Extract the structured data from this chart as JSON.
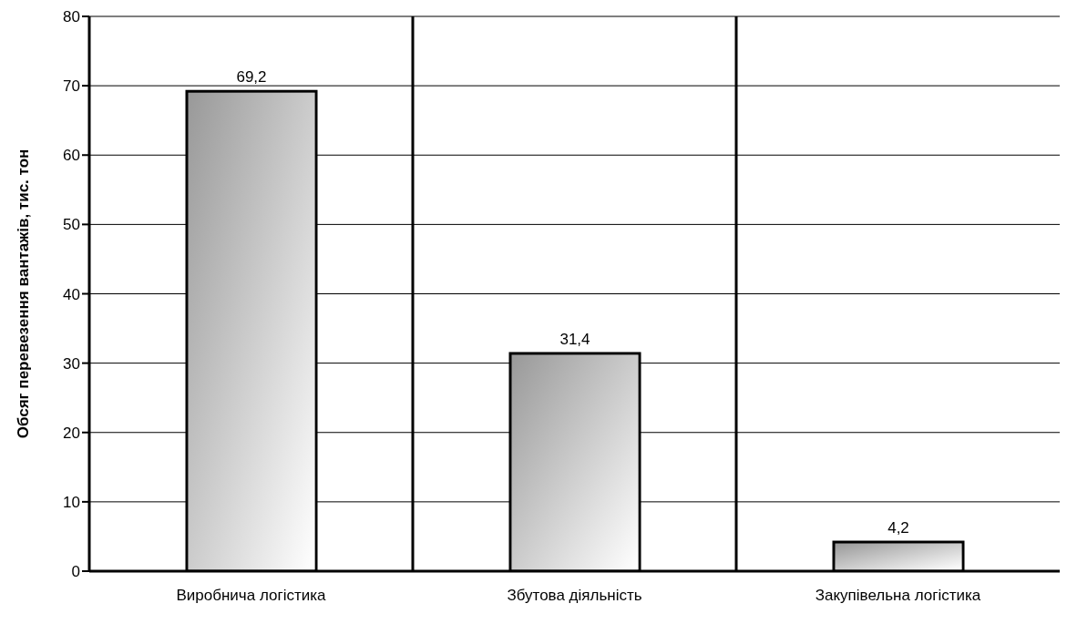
{
  "chart_data": {
    "type": "bar",
    "ylabel": "Обсяг перевезення вантажів, тис. тон",
    "categories": [
      "Виробнича логістика",
      "Збутова діяльність",
      "Закупівельна логістика"
    ],
    "values": [
      69.2,
      31.4,
      4.2
    ],
    "value_labels": [
      "69,2",
      "31,4",
      "4,2"
    ],
    "color": "#999999",
    "ylim": [
      0,
      80
    ],
    "yticks": [
      0,
      10,
      20,
      30,
      40,
      50,
      60,
      70,
      80
    ],
    "grid": true
  }
}
